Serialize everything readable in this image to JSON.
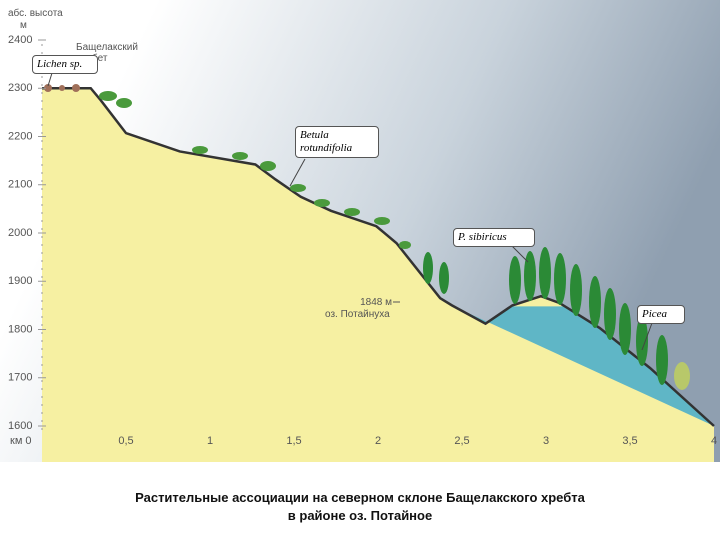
{
  "chart_data": {
    "type": "area",
    "ylabel": "абс. высота",
    "yunit": "м",
    "ridge": "Бащелакский хребет",
    "x": [
      0,
      0.29,
      0.35,
      0.5,
      0.82,
      1.27,
      1.39,
      1.54,
      1.72,
      1.99,
      2.11,
      2.37,
      2.44,
      2.64,
      2.8,
      2.97,
      3.08,
      3.32,
      3.62,
      4
    ],
    "values": [
      2300,
      2300,
      2275,
      2207,
      2169,
      2142,
      2111,
      2075,
      2046,
      2014,
      1979,
      1865,
      1850,
      1812,
      1850,
      1869,
      1855,
      1803,
      1720,
      1600
    ],
    "color": "#f6f0a2",
    "line_color": "#333333",
    "lake": {
      "elevation": 1848,
      "label": "1848 м",
      "name": "оз. Потайнуха",
      "color": "#5fb6c6"
    },
    "species": [
      "Lichen sp.",
      "Betula rotundifolia",
      "P. sibiricus",
      "Picea"
    ],
    "xlim": [
      0,
      4
    ],
    "ylim": [
      1600,
      2400
    ],
    "xticks": [
      {
        "value": 0,
        "label": "км 0"
      },
      {
        "value": 0.5,
        "label": "0,5"
      },
      1,
      {
        "value": 1.5,
        "label": "1,5"
      },
      2,
      {
        "value": 2.5,
        "label": "2,5"
      },
      3,
      {
        "value": 3.5,
        "label": "3,5"
      },
      4
    ],
    "yticks": [
      1600,
      1700,
      1800,
      1900,
      2000,
      2100,
      2200,
      2300,
      2400
    ],
    "caption": [
      "Растительные ассоциации на северном склоне Бащелакского хребта",
      "в районе оз. Потайное"
    ]
  }
}
